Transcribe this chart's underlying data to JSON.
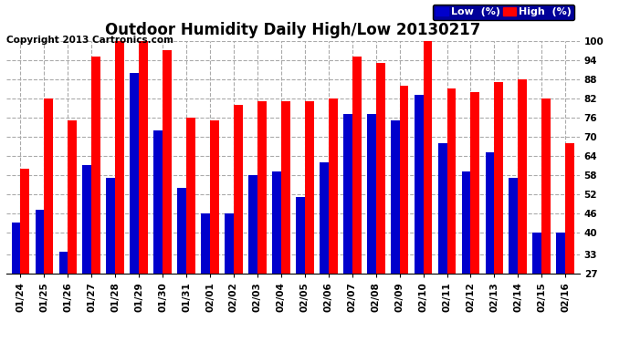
{
  "title": "Outdoor Humidity Daily High/Low 20130217",
  "copyright": "Copyright 2013 Cartronics.com",
  "dates": [
    "01/24",
    "01/25",
    "01/26",
    "01/27",
    "01/28",
    "01/29",
    "01/30",
    "01/31",
    "02/01",
    "02/02",
    "02/03",
    "02/04",
    "02/05",
    "02/06",
    "02/07",
    "02/08",
    "02/09",
    "02/10",
    "02/11",
    "02/12",
    "02/13",
    "02/14",
    "02/15",
    "02/16"
  ],
  "high": [
    60,
    82,
    75,
    95,
    100,
    100,
    97,
    76,
    75,
    80,
    81,
    81,
    81,
    82,
    95,
    93,
    86,
    100,
    85,
    84,
    87,
    88,
    82,
    68
  ],
  "low": [
    43,
    47,
    34,
    61,
    57,
    90,
    72,
    54,
    46,
    46,
    58,
    59,
    51,
    62,
    77,
    77,
    75,
    83,
    68,
    59,
    65,
    57,
    40,
    40
  ],
  "bar_width": 0.38,
  "high_color": "#ff0000",
  "low_color": "#0000cc",
  "bg_color": "#ffffff",
  "grid_color": "#aaaaaa",
  "ylim_min": 27,
  "ylim_max": 100,
  "yticks": [
    27,
    33,
    40,
    46,
    52,
    58,
    64,
    70,
    76,
    82,
    88,
    94,
    100
  ],
  "title_fontsize": 12,
  "copyright_fontsize": 7.5,
  "tick_fontsize": 7.5,
  "legend_fontsize": 8
}
